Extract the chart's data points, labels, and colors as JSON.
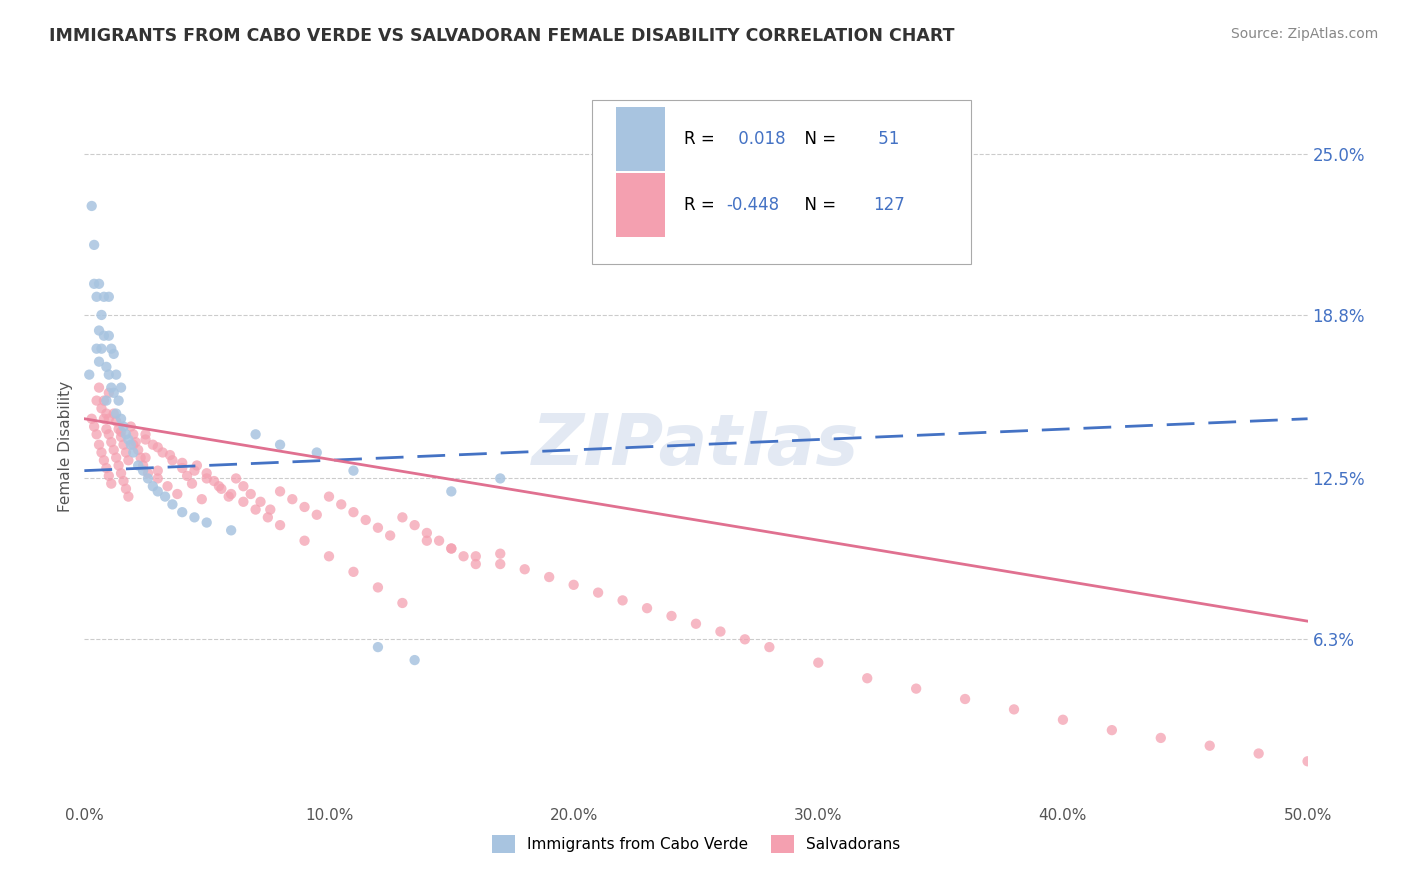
{
  "title": "IMMIGRANTS FROM CABO VERDE VS SALVADORAN FEMALE DISABILITY CORRELATION CHART",
  "source": "Source: ZipAtlas.com",
  "ylabel": "Female Disability",
  "xmin": 0.0,
  "xmax": 0.5,
  "ymin": 0.0,
  "ymax": 0.275,
  "yticks": [
    0.063,
    0.125,
    0.188,
    0.25
  ],
  "ytick_labels": [
    "6.3%",
    "12.5%",
    "18.8%",
    "25.0%"
  ],
  "xticks": [
    0.0,
    0.1,
    0.2,
    0.3,
    0.4,
    0.5
  ],
  "xtick_labels": [
    "0.0%",
    "10.0%",
    "20.0%",
    "30.0%",
    "40.0%",
    "50.0%"
  ],
  "r_cabo": 0.018,
  "n_cabo": 51,
  "r_salv": -0.448,
  "n_salv": 127,
  "color_cabo": "#a8c4e0",
  "color_salv": "#f4a0b0",
  "trendline_cabo": "#4472c4",
  "trendline_salv": "#e07090",
  "watermark": "ZIPatlas",
  "legend_cabo": "Immigrants from Cabo Verde",
  "legend_salv": "Salvadorans",
  "cabo_trend_x0": 0.0,
  "cabo_trend_x1": 0.5,
  "cabo_trend_y0": 0.128,
  "cabo_trend_y1": 0.148,
  "salv_trend_x0": 0.0,
  "salv_trend_x1": 0.5,
  "salv_trend_y0": 0.148,
  "salv_trend_y1": 0.07,
  "cabo_x": [
    0.003,
    0.004,
    0.004,
    0.005,
    0.005,
    0.006,
    0.006,
    0.006,
    0.007,
    0.007,
    0.008,
    0.008,
    0.009,
    0.009,
    0.01,
    0.01,
    0.01,
    0.011,
    0.011,
    0.012,
    0.012,
    0.013,
    0.013,
    0.014,
    0.015,
    0.015,
    0.016,
    0.017,
    0.018,
    0.019,
    0.02,
    0.022,
    0.024,
    0.026,
    0.028,
    0.03,
    0.033,
    0.036,
    0.04,
    0.045,
    0.05,
    0.06,
    0.07,
    0.08,
    0.095,
    0.11,
    0.12,
    0.135,
    0.15,
    0.17,
    0.002
  ],
  "cabo_y": [
    0.23,
    0.215,
    0.2,
    0.175,
    0.195,
    0.182,
    0.17,
    0.2,
    0.188,
    0.175,
    0.195,
    0.18,
    0.168,
    0.155,
    0.195,
    0.18,
    0.165,
    0.175,
    0.16,
    0.173,
    0.158,
    0.165,
    0.15,
    0.155,
    0.148,
    0.16,
    0.145,
    0.142,
    0.14,
    0.138,
    0.135,
    0.13,
    0.128,
    0.125,
    0.122,
    0.12,
    0.118,
    0.115,
    0.112,
    0.11,
    0.108,
    0.105,
    0.142,
    0.138,
    0.135,
    0.128,
    0.06,
    0.055,
    0.12,
    0.125,
    0.165
  ],
  "salv_x": [
    0.003,
    0.004,
    0.005,
    0.005,
    0.006,
    0.006,
    0.007,
    0.007,
    0.008,
    0.008,
    0.009,
    0.009,
    0.01,
    0.01,
    0.01,
    0.011,
    0.011,
    0.012,
    0.012,
    0.013,
    0.013,
    0.014,
    0.014,
    0.015,
    0.015,
    0.016,
    0.016,
    0.017,
    0.017,
    0.018,
    0.018,
    0.019,
    0.02,
    0.021,
    0.022,
    0.023,
    0.024,
    0.025,
    0.026,
    0.028,
    0.03,
    0.032,
    0.034,
    0.036,
    0.038,
    0.04,
    0.042,
    0.044,
    0.046,
    0.048,
    0.05,
    0.053,
    0.056,
    0.059,
    0.062,
    0.065,
    0.068,
    0.072,
    0.076,
    0.08,
    0.085,
    0.09,
    0.095,
    0.1,
    0.105,
    0.11,
    0.115,
    0.12,
    0.125,
    0.13,
    0.135,
    0.14,
    0.145,
    0.15,
    0.155,
    0.16,
    0.17,
    0.18,
    0.19,
    0.2,
    0.21,
    0.22,
    0.23,
    0.24,
    0.25,
    0.26,
    0.27,
    0.28,
    0.3,
    0.32,
    0.34,
    0.36,
    0.38,
    0.4,
    0.42,
    0.44,
    0.46,
    0.48,
    0.5,
    0.025,
    0.03,
    0.035,
    0.04,
    0.045,
    0.05,
    0.055,
    0.06,
    0.065,
    0.07,
    0.075,
    0.08,
    0.09,
    0.1,
    0.11,
    0.12,
    0.13,
    0.14,
    0.15,
    0.16,
    0.17,
    0.008,
    0.009,
    0.01,
    0.015,
    0.02,
    0.025,
    0.03
  ],
  "salv_y": [
    0.148,
    0.145,
    0.142,
    0.155,
    0.138,
    0.16,
    0.135,
    0.152,
    0.132,
    0.148,
    0.129,
    0.144,
    0.126,
    0.142,
    0.158,
    0.123,
    0.139,
    0.136,
    0.15,
    0.133,
    0.147,
    0.13,
    0.144,
    0.127,
    0.141,
    0.124,
    0.138,
    0.121,
    0.135,
    0.118,
    0.132,
    0.145,
    0.142,
    0.139,
    0.136,
    0.133,
    0.13,
    0.142,
    0.127,
    0.138,
    0.125,
    0.135,
    0.122,
    0.132,
    0.119,
    0.129,
    0.126,
    0.123,
    0.13,
    0.117,
    0.127,
    0.124,
    0.121,
    0.118,
    0.125,
    0.122,
    0.119,
    0.116,
    0.113,
    0.12,
    0.117,
    0.114,
    0.111,
    0.118,
    0.115,
    0.112,
    0.109,
    0.106,
    0.103,
    0.11,
    0.107,
    0.104,
    0.101,
    0.098,
    0.095,
    0.092,
    0.096,
    0.09,
    0.087,
    0.084,
    0.081,
    0.078,
    0.075,
    0.072,
    0.069,
    0.066,
    0.063,
    0.06,
    0.054,
    0.048,
    0.044,
    0.04,
    0.036,
    0.032,
    0.028,
    0.025,
    0.022,
    0.019,
    0.016,
    0.14,
    0.137,
    0.134,
    0.131,
    0.128,
    0.125,
    0.122,
    0.119,
    0.116,
    0.113,
    0.11,
    0.107,
    0.101,
    0.095,
    0.089,
    0.083,
    0.077,
    0.101,
    0.098,
    0.095,
    0.092,
    0.155,
    0.15,
    0.148,
    0.143,
    0.138,
    0.133,
    0.128
  ]
}
